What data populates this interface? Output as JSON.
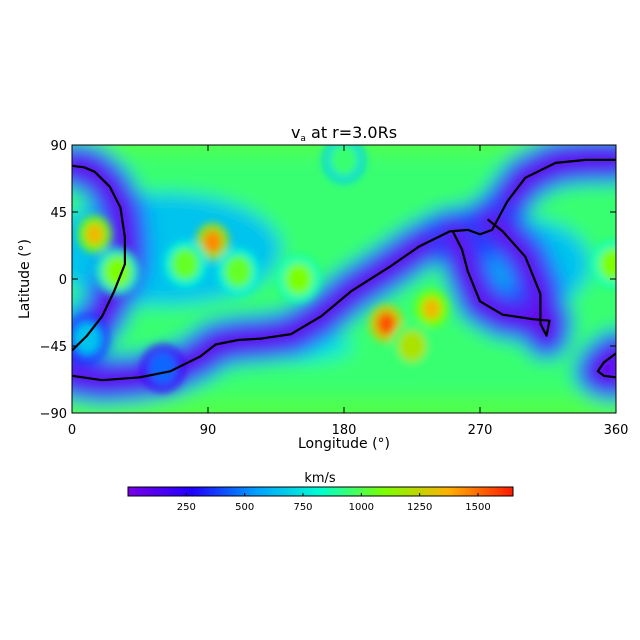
{
  "chart_data": {
    "type": "heatmap",
    "title_main": "v",
    "title_sub": "a",
    "title_rest": " at r=3.0Rs",
    "xlabel": "Longitude (°)",
    "ylabel": "Latitude (°)",
    "xlim": [
      0,
      360
    ],
    "ylim": [
      -90,
      90
    ],
    "x_ticks": [
      0,
      90,
      180,
      270,
      360
    ],
    "x_tick_labels": [
      "0",
      "90",
      "180",
      "270",
      "360"
    ],
    "y_ticks": [
      90,
      45,
      0,
      -45,
      -90
    ],
    "y_tick_labels": [
      "90",
      "45",
      "0",
      "−45",
      "−90"
    ],
    "colorbar": {
      "label": "km/s",
      "range": [
        0,
        1650
      ],
      "ticks": [
        250,
        500,
        750,
        1000,
        1250,
        1500
      ],
      "tick_labels": [
        "250",
        "500",
        "750",
        "1000",
        "1250",
        "1500"
      ],
      "colormap": [
        "#7a00e6",
        "#1f00ff",
        "#00a0ff",
        "#00ffd0",
        "#7cff00",
        "#ffb000",
        "#ff1a00"
      ]
    },
    "features": [
      {
        "lon": 15,
        "lat": 30,
        "value": 1350
      },
      {
        "lon": 93,
        "lat": 25,
        "value": 1450
      },
      {
        "lon": 30,
        "lat": 5,
        "value": 1100
      },
      {
        "lon": 75,
        "lat": 10,
        "value": 1050
      },
      {
        "lon": 110,
        "lat": 5,
        "value": 1050
      },
      {
        "lon": 150,
        "lat": 0,
        "value": 1100
      },
      {
        "lon": 238,
        "lat": -20,
        "value": 1350
      },
      {
        "lon": 208,
        "lat": -30,
        "value": 1550
      },
      {
        "lon": 225,
        "lat": -45,
        "value": 1200
      },
      {
        "lon": 358,
        "lat": 10,
        "value": 1100
      },
      {
        "lon": 10,
        "lat": -40,
        "value": 650
      },
      {
        "lon": 60,
        "lat": -60,
        "value": 450
      },
      {
        "lon": 180,
        "lat": 80,
        "value": 950
      }
    ],
    "contours": [
      {
        "name": "neutral-line",
        "points": [
          [
            0,
            -48
          ],
          [
            10,
            -38
          ],
          [
            20,
            -25
          ],
          [
            28,
            -8
          ],
          [
            35,
            10
          ],
          [
            35,
            28
          ],
          [
            32,
            48
          ],
          [
            25,
            62
          ],
          [
            15,
            72
          ],
          [
            8,
            75
          ],
          [
            0,
            76
          ]
        ]
      },
      {
        "name": "neutral-line",
        "points": [
          [
            0,
            -65
          ],
          [
            20,
            -68
          ],
          [
            45,
            -66
          ],
          [
            65,
            -62
          ],
          [
            85,
            -52
          ],
          [
            95,
            -44
          ],
          [
            110,
            -41
          ],
          [
            125,
            -40
          ],
          [
            145,
            -37
          ],
          [
            165,
            -25
          ],
          [
            185,
            -8
          ],
          [
            210,
            8
          ],
          [
            230,
            22
          ],
          [
            250,
            32
          ],
          [
            262,
            33
          ],
          [
            270,
            30
          ],
          [
            278,
            33
          ],
          [
            288,
            52
          ],
          [
            300,
            68
          ],
          [
            320,
            78
          ],
          [
            340,
            80
          ],
          [
            360,
            80
          ]
        ]
      },
      {
        "name": "neutral-line",
        "points": [
          [
            252,
            32
          ],
          [
            258,
            20
          ],
          [
            262,
            5
          ],
          [
            270,
            -15
          ],
          [
            285,
            -24
          ],
          [
            305,
            -27
          ],
          [
            316,
            -28
          ],
          [
            314,
            -38
          ],
          [
            310,
            -30
          ],
          [
            310,
            -10
          ],
          [
            300,
            15
          ],
          [
            285,
            32
          ],
          [
            275,
            40
          ]
        ]
      },
      {
        "name": "neutral-line",
        "points": [
          [
            360,
            -50
          ],
          [
            352,
            -56
          ],
          [
            348,
            -62
          ],
          [
            352,
            -65
          ],
          [
            360,
            -66
          ]
        ]
      }
    ]
  }
}
